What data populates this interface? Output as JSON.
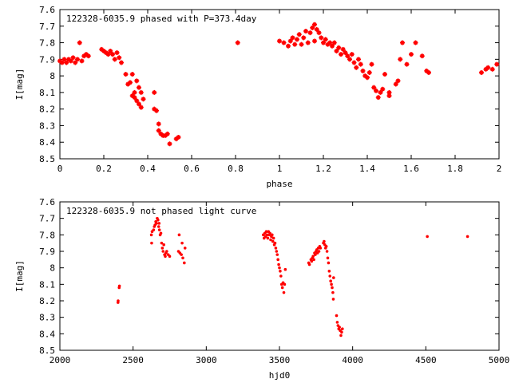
{
  "chart_data": [
    {
      "type": "scatter",
      "title": "122328-6035.9 phased with P=373.4day",
      "xlabel": "phase",
      "ylabel": "I[mag]",
      "xlim": [
        0,
        2
      ],
      "ylim": [
        7.6,
        8.5
      ],
      "y_inverted": true,
      "grid": false,
      "marker": "cross",
      "marker_color": "#ff0000",
      "xticks": [
        "0",
        "0.2",
        "0.4",
        "0.6",
        "0.8",
        "1",
        "1.2",
        "1.4",
        "1.6",
        "1.8",
        "2"
      ],
      "yticks": [
        "7.6",
        "7.7",
        "7.8",
        "7.9",
        "8",
        "8.1",
        "8.2",
        "8.3",
        "8.4",
        "8.5"
      ],
      "series": [
        {
          "points": [
            [
              0.0,
              7.91
            ],
            [
              0.01,
              7.92
            ],
            [
              0.02,
              7.9
            ],
            [
              0.03,
              7.92
            ],
            [
              0.04,
              7.9
            ],
            [
              0.05,
              7.91
            ],
            [
              0.06,
              7.89
            ],
            [
              0.07,
              7.92
            ],
            [
              0.08,
              7.9
            ],
            [
              0.09,
              7.8
            ],
            [
              0.1,
              7.91
            ],
            [
              0.11,
              7.88
            ],
            [
              0.12,
              7.87
            ],
            [
              0.13,
              7.88
            ],
            [
              0.19,
              7.84
            ],
            [
              0.2,
              7.85
            ],
            [
              0.21,
              7.86
            ],
            [
              0.22,
              7.87
            ],
            [
              0.23,
              7.85
            ],
            [
              0.24,
              7.87
            ],
            [
              0.25,
              7.9
            ],
            [
              0.26,
              7.86
            ],
            [
              0.27,
              7.89
            ],
            [
              0.28,
              7.92
            ],
            [
              0.3,
              7.99
            ],
            [
              0.31,
              8.05
            ],
            [
              0.32,
              8.04
            ],
            [
              0.33,
              8.12
            ],
            [
              0.33,
              7.99
            ],
            [
              0.34,
              8.1
            ],
            [
              0.34,
              8.13
            ],
            [
              0.35,
              8.15
            ],
            [
              0.35,
              8.03
            ],
            [
              0.36,
              8.17
            ],
            [
              0.36,
              8.07
            ],
            [
              0.37,
              8.1
            ],
            [
              0.37,
              8.19
            ],
            [
              0.38,
              8.14
            ],
            [
              0.43,
              8.1
            ],
            [
              0.43,
              8.2
            ],
            [
              0.44,
              8.21
            ],
            [
              0.45,
              8.29
            ],
            [
              0.45,
              8.33
            ],
            [
              0.46,
              8.35
            ],
            [
              0.47,
              8.36
            ],
            [
              0.48,
              8.36
            ],
            [
              0.49,
              8.35
            ],
            [
              0.5,
              8.41
            ],
            [
              0.53,
              8.38
            ],
            [
              0.54,
              8.37
            ],
            [
              0.81,
              7.8
            ],
            [
              1.0,
              7.79
            ],
            [
              1.02,
              7.8
            ],
            [
              1.04,
              7.82
            ],
            [
              1.05,
              7.79
            ],
            [
              1.06,
              7.77
            ],
            [
              1.07,
              7.81
            ],
            [
              1.08,
              7.78
            ],
            [
              1.09,
              7.75
            ],
            [
              1.1,
              7.81
            ],
            [
              1.11,
              7.77
            ],
            [
              1.12,
              7.73
            ],
            [
              1.13,
              7.8
            ],
            [
              1.14,
              7.74
            ],
            [
              1.15,
              7.71
            ],
            [
              1.16,
              7.69
            ],
            [
              1.16,
              7.79
            ],
            [
              1.17,
              7.72
            ],
            [
              1.18,
              7.74
            ],
            [
              1.19,
              7.77
            ],
            [
              1.2,
              7.8
            ],
            [
              1.21,
              7.78
            ],
            [
              1.22,
              7.81
            ],
            [
              1.23,
              7.8
            ],
            [
              1.24,
              7.82
            ],
            [
              1.25,
              7.8
            ],
            [
              1.26,
              7.85
            ],
            [
              1.27,
              7.83
            ],
            [
              1.28,
              7.87
            ],
            [
              1.29,
              7.84
            ],
            [
              1.3,
              7.86
            ],
            [
              1.31,
              7.88
            ],
            [
              1.32,
              7.9
            ],
            [
              1.33,
              7.87
            ],
            [
              1.34,
              7.92
            ],
            [
              1.35,
              7.95
            ],
            [
              1.36,
              7.9
            ],
            [
              1.37,
              7.93
            ],
            [
              1.38,
              7.97
            ],
            [
              1.39,
              8.0
            ],
            [
              1.4,
              8.01
            ],
            [
              1.41,
              7.98
            ],
            [
              1.42,
              7.93
            ],
            [
              1.43,
              8.07
            ],
            [
              1.44,
              8.09
            ],
            [
              1.45,
              8.13
            ],
            [
              1.46,
              8.1
            ],
            [
              1.47,
              8.08
            ],
            [
              1.48,
              7.99
            ],
            [
              1.5,
              8.1
            ],
            [
              1.5,
              8.12
            ],
            [
              1.53,
              8.05
            ],
            [
              1.54,
              8.03
            ],
            [
              1.55,
              7.9
            ],
            [
              1.56,
              7.8
            ],
            [
              1.58,
              7.93
            ],
            [
              1.6,
              7.87
            ],
            [
              1.62,
              7.8
            ],
            [
              1.65,
              7.88
            ],
            [
              1.67,
              7.97
            ],
            [
              1.68,
              7.98
            ],
            [
              1.92,
              7.98
            ],
            [
              1.94,
              7.96
            ],
            [
              1.95,
              7.95
            ],
            [
              1.97,
              7.96
            ],
            [
              1.99,
              7.93
            ]
          ]
        }
      ]
    },
    {
      "type": "scatter",
      "title": "122328-6035.9 not phased light curve",
      "xlabel": "hjd0",
      "ylabel": "I[mag]",
      "xlim": [
        2000,
        5000
      ],
      "ylim": [
        7.6,
        8.5
      ],
      "y_inverted": true,
      "grid": false,
      "marker": "dot",
      "marker_color": "#ff0000",
      "xticks": [
        "2000",
        "2500",
        "3000",
        "3500",
        "4000",
        "4500",
        "5000"
      ],
      "yticks": [
        "7.6",
        "7.7",
        "7.8",
        "7.9",
        "8",
        "8.1",
        "8.2",
        "8.3",
        "8.4",
        "8.5"
      ],
      "series": [
        {
          "points": [
            [
              2397,
              8.21
            ],
            [
              2398,
              8.2
            ],
            [
              2405,
              8.12
            ],
            [
              2407,
              8.11
            ],
            [
              2625,
              7.8
            ],
            [
              2627,
              7.85
            ],
            [
              2630,
              7.78
            ],
            [
              2640,
              7.77
            ],
            [
              2645,
              7.75
            ],
            [
              2650,
              7.74
            ],
            [
              2655,
              7.72
            ],
            [
              2660,
              7.73
            ],
            [
              2665,
              7.7
            ],
            [
              2670,
              7.71
            ],
            [
              2675,
              7.75
            ],
            [
              2678,
              7.73
            ],
            [
              2680,
              7.77
            ],
            [
              2685,
              7.8
            ],
            [
              2690,
              7.79
            ],
            [
              2695,
              7.85
            ],
            [
              2700,
              7.88
            ],
            [
              2705,
              7.9
            ],
            [
              2710,
              7.86
            ],
            [
              2715,
              7.92
            ],
            [
              2720,
              7.93
            ],
            [
              2725,
              7.91
            ],
            [
              2730,
              7.9
            ],
            [
              2740,
              7.92
            ],
            [
              2750,
              7.93
            ],
            [
              2810,
              7.9
            ],
            [
              2815,
              7.8
            ],
            [
              2820,
              7.91
            ],
            [
              2830,
              7.92
            ],
            [
              2835,
              7.85
            ],
            [
              2840,
              7.94
            ],
            [
              2850,
              7.97
            ],
            [
              2855,
              7.88
            ],
            [
              3390,
              7.8
            ],
            [
              3395,
              7.82
            ],
            [
              3400,
              7.79
            ],
            [
              3405,
              7.81
            ],
            [
              3410,
              7.78
            ],
            [
              3415,
              7.8
            ],
            [
              3420,
              7.82
            ],
            [
              3425,
              7.78
            ],
            [
              3430,
              7.8
            ],
            [
              3435,
              7.79
            ],
            [
              3440,
              7.83
            ],
            [
              3445,
              7.81
            ],
            [
              3450,
              7.8
            ],
            [
              3455,
              7.84
            ],
            [
              3460,
              7.82
            ],
            [
              3465,
              7.86
            ],
            [
              3470,
              7.85
            ],
            [
              3475,
              7.88
            ],
            [
              3480,
              7.9
            ],
            [
              3485,
              7.92
            ],
            [
              3490,
              7.95
            ],
            [
              3495,
              7.98
            ],
            [
              3500,
              8.0
            ],
            [
              3505,
              8.02
            ],
            [
              3510,
              8.05
            ],
            [
              3515,
              8.1
            ],
            [
              3520,
              8.12
            ],
            [
              3525,
              8.09
            ],
            [
              3530,
              8.15
            ],
            [
              3535,
              8.1
            ],
            [
              3540,
              8.01
            ],
            [
              3700,
              7.97
            ],
            [
              3705,
              7.98
            ],
            [
              3715,
              7.95
            ],
            [
              3720,
              7.96
            ],
            [
              3725,
              7.94
            ],
            [
              3730,
              7.93
            ],
            [
              3735,
              7.95
            ],
            [
              3740,
              7.91
            ],
            [
              3745,
              7.92
            ],
            [
              3750,
              7.9
            ],
            [
              3755,
              7.89
            ],
            [
              3760,
              7.91
            ],
            [
              3765,
              7.88
            ],
            [
              3770,
              7.9
            ],
            [
              3775,
              7.87
            ],
            [
              3780,
              7.88
            ],
            [
              3800,
              7.85
            ],
            [
              3805,
              7.84
            ],
            [
              3810,
              7.86
            ],
            [
              3815,
              7.88
            ],
            [
              3820,
              7.87
            ],
            [
              3825,
              7.9
            ],
            [
              3830,
              7.94
            ],
            [
              3835,
              7.97
            ],
            [
              3840,
              8.02
            ],
            [
              3845,
              8.05
            ],
            [
              3850,
              8.08
            ],
            [
              3855,
              8.1
            ],
            [
              3860,
              8.12
            ],
            [
              3865,
              8.15
            ],
            [
              3868,
              8.19
            ],
            [
              3870,
              8.06
            ],
            [
              3890,
              8.29
            ],
            [
              3895,
              8.33
            ],
            [
              3900,
              8.35
            ],
            [
              3905,
              8.37
            ],
            [
              3910,
              8.36
            ],
            [
              3915,
              8.38
            ],
            [
              3920,
              8.41
            ],
            [
              3925,
              8.39
            ],
            [
              3930,
              8.37
            ],
            [
              4510,
              7.81
            ],
            [
              4785,
              7.81
            ]
          ]
        }
      ]
    }
  ]
}
